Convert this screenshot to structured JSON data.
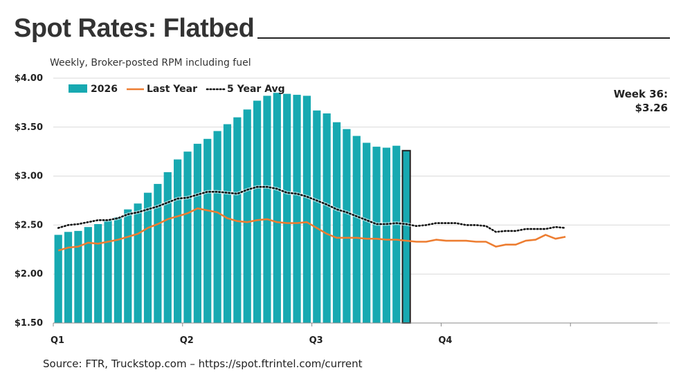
{
  "page": {
    "title": "Spot Rates: Flatbed",
    "subtitle": "Weekly, Broker-posted RPM including fuel",
    "source": "Source: FTR, Truckstop.com – https://spot.ftrintel.com/current",
    "callout_line1": "Week 36:",
    "callout_line2": "$3.26"
  },
  "chart_data": {
    "type": "bar",
    "ylim": [
      1.5,
      4.0
    ],
    "yticks": [
      1.5,
      2.0,
      2.5,
      3.0,
      3.5,
      4.0
    ],
    "ytick_labels": [
      "$1.50",
      "$2.00",
      "$2.50",
      "$3.00",
      "$3.50",
      "$4.00"
    ],
    "x_weeks": 52,
    "quarter_labels": [
      "Q1",
      "Q2",
      "Q3",
      "Q4"
    ],
    "grid": true,
    "legend_placement": "top-left",
    "highlighted_week": 36,
    "colors": {
      "bars": "#17A9B1",
      "last_year": "#ED7D31",
      "five_year": "#111111",
      "grid": "#D9D9D9",
      "highlight_edge": "#222222"
    },
    "series": [
      {
        "name": "2026",
        "kind": "bar",
        "values": [
          2.4,
          2.43,
          2.44,
          2.48,
          2.51,
          2.55,
          2.58,
          2.66,
          2.72,
          2.83,
          2.92,
          3.04,
          3.17,
          3.25,
          3.33,
          3.38,
          3.46,
          3.53,
          3.6,
          3.68,
          3.77,
          3.82,
          3.85,
          3.84,
          3.83,
          3.82,
          3.67,
          3.64,
          3.55,
          3.48,
          3.41,
          3.34,
          3.3,
          3.29,
          3.31,
          3.26
        ]
      },
      {
        "name": "Last Year",
        "kind": "line",
        "values": [
          2.24,
          2.27,
          2.28,
          2.32,
          2.31,
          2.33,
          2.35,
          2.38,
          2.41,
          2.47,
          2.51,
          2.56,
          2.59,
          2.62,
          2.67,
          2.65,
          2.63,
          2.57,
          2.54,
          2.53,
          2.55,
          2.56,
          2.53,
          2.52,
          2.52,
          2.53,
          2.47,
          2.41,
          2.37,
          2.37,
          2.37,
          2.36,
          2.36,
          2.35,
          2.35,
          2.34,
          2.33,
          2.33,
          2.35,
          2.34,
          2.34,
          2.34,
          2.33,
          2.33,
          2.28,
          2.3,
          2.3,
          2.34,
          2.35,
          2.4,
          2.36,
          2.38
        ]
      },
      {
        "name": "5 Year Avg",
        "kind": "dotted-line",
        "values": [
          2.47,
          2.5,
          2.51,
          2.53,
          2.55,
          2.55,
          2.57,
          2.61,
          2.63,
          2.66,
          2.69,
          2.73,
          2.77,
          2.78,
          2.81,
          2.84,
          2.84,
          2.83,
          2.82,
          2.86,
          2.89,
          2.89,
          2.87,
          2.83,
          2.82,
          2.79,
          2.75,
          2.71,
          2.66,
          2.63,
          2.59,
          2.55,
          2.51,
          2.51,
          2.52,
          2.51,
          2.49,
          2.5,
          2.52,
          2.52,
          2.52,
          2.5,
          2.5,
          2.49,
          2.43,
          2.44,
          2.44,
          2.46,
          2.46,
          2.46,
          2.48,
          2.47
        ]
      }
    ]
  }
}
